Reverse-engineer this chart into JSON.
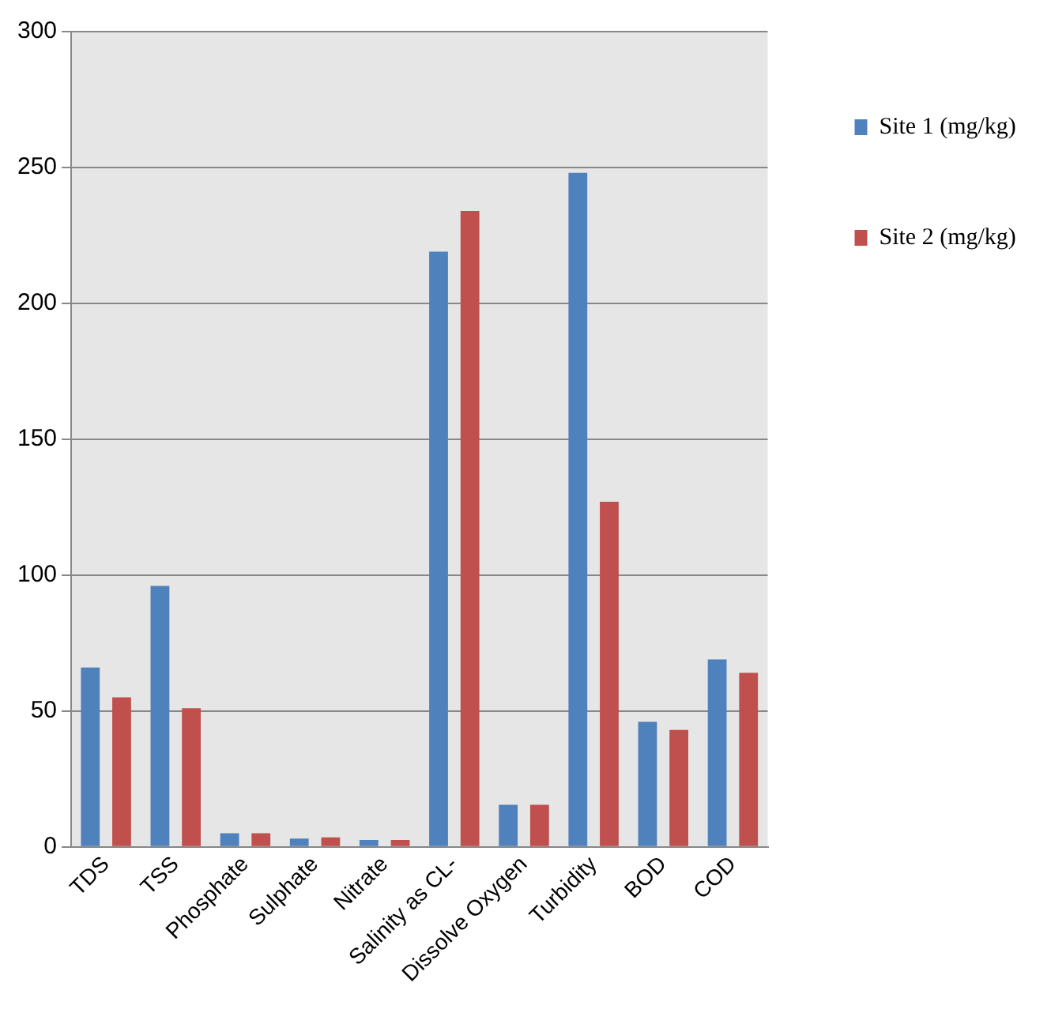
{
  "chart_data": {
    "type": "bar",
    "categories": [
      "TDS",
      "TSS",
      "Phosphate",
      "Sulphate",
      "Nitrate",
      "Salinity as CL-",
      "Dissolve Oxygen",
      "Turbidity",
      "BOD",
      "COD"
    ],
    "series": [
      {
        "name": "Site 1 (mg/kg)",
        "color": "#4f81bd",
        "values": [
          66,
          96,
          5,
          3,
          2.5,
          219,
          15.5,
          248,
          46,
          69
        ]
      },
      {
        "name": "Site 2 (mg/kg)",
        "color": "#c0504d",
        "values": [
          55,
          51,
          5,
          3.5,
          2.5,
          234,
          15.5,
          127,
          43,
          64
        ]
      }
    ],
    "ylim": [
      0,
      300
    ],
    "yticks": [
      0,
      50,
      100,
      150,
      200,
      250,
      300
    ],
    "grid": "y",
    "legend": "right"
  }
}
